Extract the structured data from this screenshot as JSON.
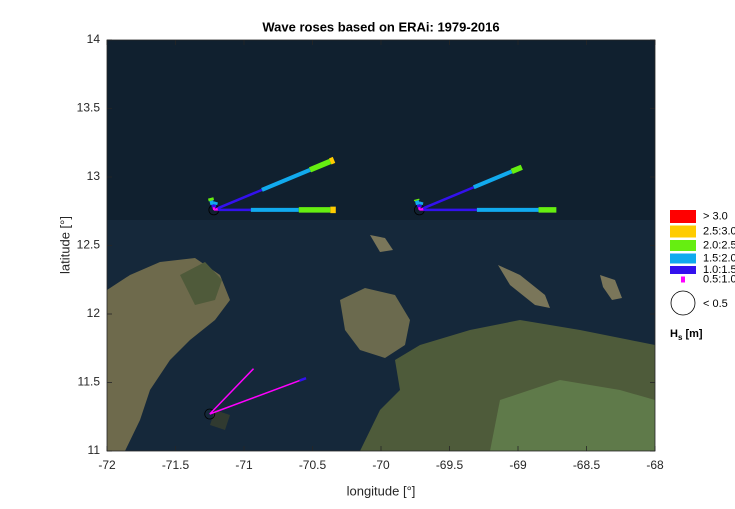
{
  "chart_data": {
    "type": "wave-rose",
    "title": "Wave roses based on ERAi: 1979-2016",
    "x_label": "longitude [°]",
    "y_label": "latitude [°]",
    "xlim": [
      -72,
      -68
    ],
    "ylim": [
      11,
      14
    ],
    "xticks": [
      -72,
      -71.5,
      -71,
      -70.5,
      -70,
      -69.5,
      -69,
      -68.5,
      -68
    ],
    "yticks": [
      11,
      11.5,
      12,
      12.5,
      13,
      13.5,
      14
    ],
    "bins": [
      {
        "label": "0.5:1.0",
        "color": "#ff00ff"
      },
      {
        "label": "1.0:1.5",
        "color": "#3311ee"
      },
      {
        "label": "1.5:2.0",
        "color": "#11aaee"
      },
      {
        "label": "2.0:2.5",
        "color": "#66ee11"
      },
      {
        "label": "2.5:3.0",
        "color": "#ffcc00"
      },
      {
        "label": "> 3.0",
        "color": "#ff0000"
      }
    ],
    "calm_label": "< 0.5",
    "legend_title": [
      "H",
      "s",
      " [m]"
    ],
    "roses": [
      {
        "x": -71.22,
        "y": 12.76,
        "petals": [
          {
            "direction": 0,
            "values": [
              0.03,
              0.24,
              0.35,
              0.23,
              0.04,
              0
            ]
          },
          {
            "direction": 22.6,
            "values": [
              0.03,
              0.35,
              0.38,
              0.16,
              0.03,
              0
            ]
          },
          {
            "direction": 105,
            "values": [
              0.02,
              0.02,
              0.03,
              0.02,
              0,
              0
            ]
          },
          {
            "direction": 75,
            "values": [
              0.02,
              0.02,
              0.02,
              0,
              0,
              0
            ]
          }
        ]
      },
      {
        "x": -69.72,
        "y": 12.76,
        "petals": [
          {
            "direction": 0,
            "values": [
              0.03,
              0.39,
              0.45,
              0.13,
              0,
              0
            ]
          },
          {
            "direction": 22.6,
            "values": [
              0.03,
              0.4,
              0.3,
              0.08,
              0,
              0
            ]
          },
          {
            "direction": 105,
            "values": [
              0.02,
              0.02,
              0.03,
              0.01,
              0,
              0
            ]
          },
          {
            "direction": 75,
            "values": [
              0.02,
              0.02,
              0.02,
              0,
              0,
              0
            ]
          }
        ]
      },
      {
        "x": -71.25,
        "y": 11.27,
        "petals": [
          {
            "direction": 20.4,
            "values": [
              0.7,
              0.05,
              0,
              0,
              0,
              0
            ]
          },
          {
            "direction": 46,
            "values": [
              0.46,
              0,
              0,
              0,
              0,
              0
            ]
          }
        ]
      }
    ]
  }
}
